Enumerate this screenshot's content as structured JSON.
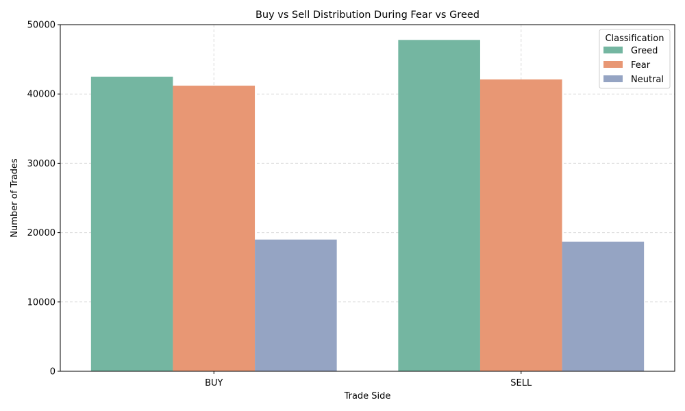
{
  "chart_data": {
    "type": "bar",
    "title": "Buy vs Sell Distribution During Fear vs Greed",
    "xlabel": "Trade Side",
    "ylabel": "Number of Trades",
    "categories": [
      "BUY",
      "SELL"
    ],
    "series": [
      {
        "name": "Greed",
        "values": [
          42500,
          47800
        ],
        "color": "#74b6a1"
      },
      {
        "name": "Fear",
        "values": [
          41200,
          42100
        ],
        "color": "#e89774"
      },
      {
        "name": "Neutral",
        "values": [
          19000,
          18700
        ],
        "color": "#95a4c3"
      }
    ],
    "ylim": [
      0,
      50000
    ],
    "yticks": [
      "0",
      "10000",
      "20000",
      "30000",
      "40000",
      "50000"
    ],
    "grid": true,
    "legend": {
      "title": "Classification",
      "placement": "top-right"
    }
  }
}
